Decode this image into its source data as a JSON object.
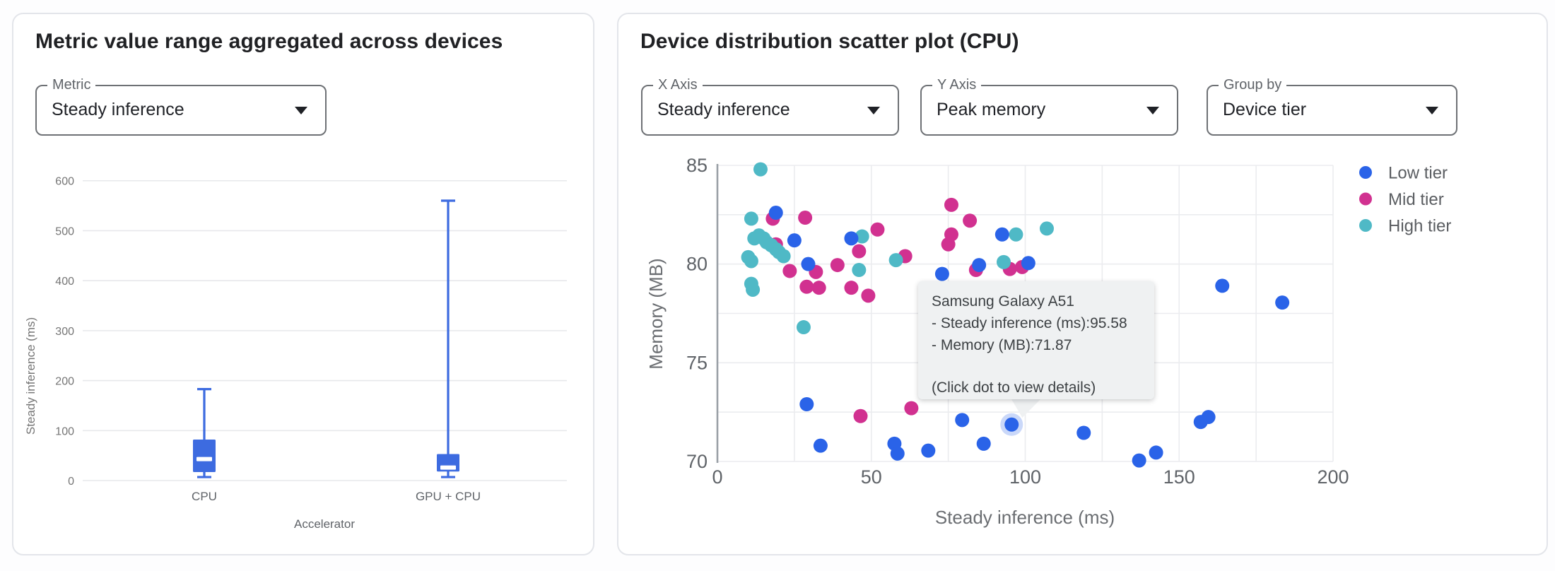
{
  "left_panel": {
    "title": "Metric value range aggregated across devices",
    "metric_select": {
      "label": "Metric",
      "value": "Steady inference"
    }
  },
  "right_panel": {
    "title": "Device distribution scatter plot (CPU)",
    "x_axis_select": {
      "label": "X Axis",
      "value": "Steady inference"
    },
    "y_axis_select": {
      "label": "Y Axis",
      "value": "Peak memory"
    },
    "group_by_select": {
      "label": "Group by",
      "value": "Device tier"
    }
  },
  "tooltip": {
    "title": "Samsung Galaxy A51",
    "metric_line": "- Steady inference (ms):95.58",
    "memory_line": "- Memory (MB):71.87",
    "hint": "(Click dot to view details)"
  },
  "colors": {
    "low_tier": "#2a63e8",
    "mid_tier": "#d13190",
    "high_tier": "#4fb9c6",
    "box_fill": "#3d6be0",
    "grid": "#e7e8eb",
    "axis_line": "#9aa0a6",
    "tick_text": "#5f6368",
    "axis_title_text": "#6b6e72",
    "tooltip_bg": "#eff1f2"
  },
  "chart_data": [
    {
      "type": "box",
      "title": "Metric value range aggregated across devices",
      "xlabel": "Accelerator",
      "ylabel": "Steady inference (ms)",
      "ylim": [
        0,
        600
      ],
      "yticks": [
        0,
        100,
        200,
        300,
        400,
        500,
        600
      ],
      "grid": true,
      "categories": [
        "CPU",
        "GPU + CPU"
      ],
      "boxes": [
        {
          "category": "CPU",
          "min": 7,
          "q1": 17,
          "median": 43,
          "q3": 82,
          "max": 183
        },
        {
          "category": "GPU + CPU",
          "min": 7,
          "q1": 18,
          "median": 26,
          "q3": 53,
          "max": 560
        }
      ]
    },
    {
      "type": "scatter",
      "title": "Device distribution scatter plot (CPU)",
      "xlabel": "Steady inference (ms)",
      "ylabel": "Memory (MB)",
      "xlim": [
        0,
        200
      ],
      "ylim": [
        70,
        85
      ],
      "xticks": [
        0,
        50,
        100,
        150,
        200
      ],
      "yticks": [
        70,
        75,
        80,
        85
      ],
      "minor_grid_step_x": 25,
      "minor_grid_step_y": 2.5,
      "grid": true,
      "legend_position": "right",
      "legend": [
        "Low tier",
        "Mid tier",
        "High tier"
      ],
      "series": [
        {
          "name": "Low tier",
          "color": "#2a63e8",
          "points": [
            [
              19,
              82.6
            ],
            [
              25,
              81.2
            ],
            [
              29.5,
              80.0
            ],
            [
              43.5,
              81.3
            ],
            [
              73,
              79.5
            ],
            [
              85,
              79.95
            ],
            [
              92.5,
              81.5
            ],
            [
              101,
              80.05
            ],
            [
              164,
              78.9
            ],
            [
              183.5,
              78.05
            ],
            [
              29,
              72.9
            ],
            [
              33.5,
              70.8
            ],
            [
              57.5,
              70.9
            ],
            [
              58.5,
              70.4
            ],
            [
              68.5,
              70.55
            ],
            [
              79.5,
              72.1
            ],
            [
              86.5,
              70.9
            ],
            [
              119,
              71.45
            ],
            [
              137,
              70.05
            ],
            [
              142.5,
              70.45
            ],
            [
              157,
              72.0
            ],
            [
              159.5,
              72.25
            ],
            [
              95.58,
              71.87
            ]
          ]
        },
        {
          "name": "Mid tier",
          "color": "#d13190",
          "points": [
            [
              18,
              82.3
            ],
            [
              28.5,
              82.35
            ],
            [
              19,
              81.0
            ],
            [
              23.5,
              79.65
            ],
            [
              32,
              79.6
            ],
            [
              39,
              79.95
            ],
            [
              29,
              78.85
            ],
            [
              33,
              78.8
            ],
            [
              43.5,
              78.8
            ],
            [
              49,
              78.4
            ],
            [
              46,
              80.65
            ],
            [
              52,
              81.75
            ],
            [
              61,
              80.4
            ],
            [
              75,
              81.0
            ],
            [
              76,
              81.5
            ],
            [
              76,
              83.0
            ],
            [
              82,
              82.2
            ],
            [
              84,
              79.7
            ],
            [
              95,
              79.75
            ],
            [
              99,
              79.85
            ],
            [
              46.5,
              72.3
            ],
            [
              63,
              72.7
            ]
          ]
        },
        {
          "name": "High tier",
          "color": "#4fb9c6",
          "points": [
            [
              14,
              84.8
            ],
            [
              11,
              82.3
            ],
            [
              12,
              81.3
            ],
            [
              13.5,
              81.45
            ],
            [
              15,
              81.3
            ],
            [
              16,
              81.1
            ],
            [
              17.5,
              80.95
            ],
            [
              19,
              80.75
            ],
            [
              20,
              80.6
            ],
            [
              21.5,
              80.4
            ],
            [
              10,
              80.35
            ],
            [
              11,
              80.15
            ],
            [
              11,
              79.0
            ],
            [
              11.5,
              78.7
            ],
            [
              28,
              76.8
            ],
            [
              46,
              79.7
            ],
            [
              47,
              81.4
            ],
            [
              58,
              80.2
            ],
            [
              93,
              80.1
            ],
            [
              97,
              81.5
            ],
            [
              107,
              81.8
            ]
          ]
        }
      ],
      "highlighted_point": {
        "series": "Low tier",
        "device": "Samsung Galaxy A51",
        "x": 95.58,
        "y": 71.87
      }
    }
  ]
}
